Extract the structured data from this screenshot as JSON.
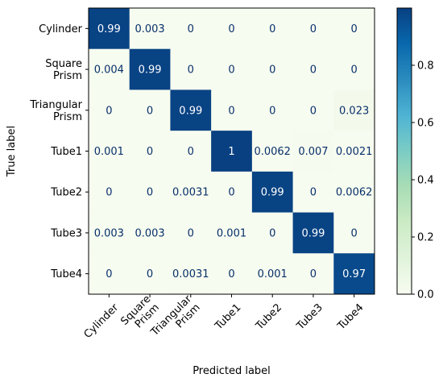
{
  "chart_data": {
    "type": "heatmap",
    "title": "",
    "xlabel": "Predicted label",
    "ylabel": "True label",
    "rows": [
      "Cylinder",
      "Square Prism",
      "Triangular Prism",
      "Tube1",
      "Tube2",
      "Tube3",
      "Tube4"
    ],
    "cols": [
      "Cylinder",
      "Square Prism",
      "Triangular Prism",
      "Tube1",
      "Tube2",
      "Tube3",
      "Tube4"
    ],
    "values": [
      [
        0.99,
        0.003,
        0,
        0,
        0,
        0,
        0
      ],
      [
        0.004,
        0.99,
        0,
        0,
        0,
        0,
        0
      ],
      [
        0,
        0,
        0.99,
        0,
        0,
        0,
        0.023
      ],
      [
        0.001,
        0,
        0,
        1,
        0.0062,
        0.007,
        0.0021
      ],
      [
        0,
        0,
        0.0031,
        0,
        0.99,
        0,
        0.0062
      ],
      [
        0.003,
        0.003,
        0,
        0.001,
        0,
        0.99,
        0
      ],
      [
        0,
        0,
        0.0031,
        0,
        0.001,
        0,
        0.97
      ]
    ],
    "labels": [
      [
        "0.99",
        "0.003",
        "0",
        "0",
        "0",
        "0",
        "0"
      ],
      [
        "0.004",
        "0.99",
        "0",
        "0",
        "0",
        "0",
        "0"
      ],
      [
        "0",
        "0",
        "0.99",
        "0",
        "0",
        "0",
        "0.023"
      ],
      [
        "0.001",
        "0",
        "0",
        "1",
        "0.0062",
        "0.007",
        "0.0021"
      ],
      [
        "0",
        "0",
        "0.0031",
        "0",
        "0.99",
        "0",
        "0.0062"
      ],
      [
        "0.003",
        "0.003",
        "0",
        "0.001",
        "0",
        "0.99",
        "0"
      ],
      [
        "0",
        "0",
        "0.0031",
        "0",
        "0.001",
        "0",
        "0.97"
      ]
    ],
    "colormap": "GnBu",
    "color_low": "#f7fcf0",
    "color_high": "#084081",
    "text_dark": "#08306b",
    "text_light": "#ffffff",
    "colorbar": {
      "range": [
        0,
        1
      ],
      "ticks": [
        0.0,
        0.2,
        0.4,
        0.6,
        0.8
      ],
      "tick_labels": [
        "0.0",
        "0.2",
        "0.4",
        "0.6",
        "0.8"
      ]
    }
  }
}
